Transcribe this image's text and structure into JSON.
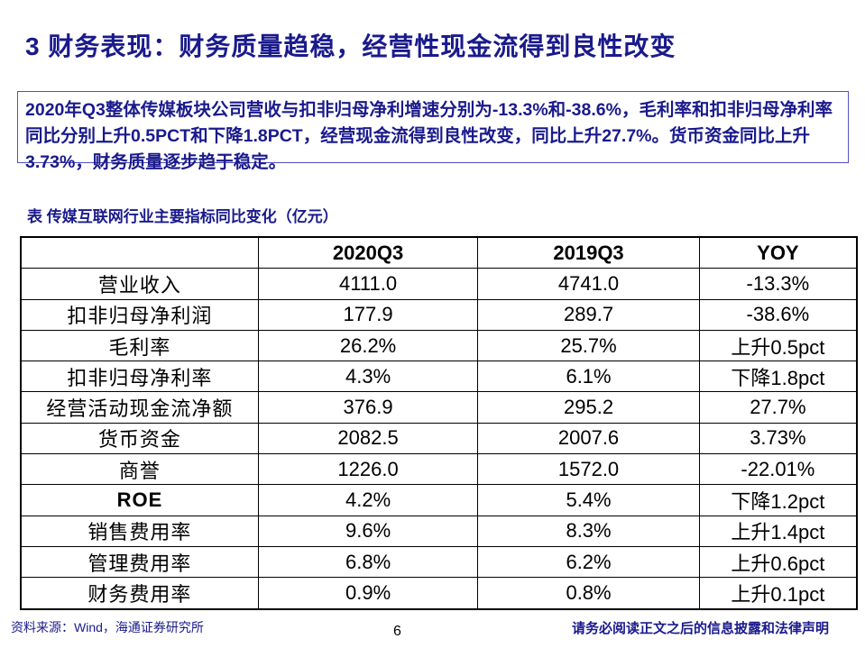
{
  "title": "3 财务表现：财务质量趋稳，经营性现金流得到良性改变",
  "summary": "2020年Q3整体传媒板块公司营收与扣非归母净利增速分别为-13.3%和-38.6%，毛利率和扣非归母净利率同比分别上升0.5PCT和下降1.8PCT，经营现金流得到良性改变，同比上升27.7%。货币资金同比上升3.73%，财务质量逐步趋于稳定。",
  "table_caption": "表 传媒互联网行业主要指标同比变化（亿元）",
  "table": {
    "headers": [
      "",
      "2020Q3",
      "2019Q3",
      "YOY"
    ],
    "rows": [
      [
        "营业收入",
        "4111.0",
        "4741.0",
        "-13.3%"
      ],
      [
        "扣非归母净利润",
        "177.9",
        "289.7",
        "-38.6%"
      ],
      [
        "毛利率",
        "26.2%",
        "25.7%",
        "上升0.5pct"
      ],
      [
        "扣非归母净利率",
        "4.3%",
        "6.1%",
        "下降1.8pct"
      ],
      [
        "经营活动现金流净额",
        "376.9",
        "295.2",
        "27.7%"
      ],
      [
        "货币资金",
        "2082.5",
        "2007.6",
        "3.73%"
      ],
      [
        "商誉",
        "1226.0",
        "1572.0",
        "-22.01%"
      ],
      [
        "ROE",
        "4.2%",
        "5.4%",
        "下降1.2pct"
      ],
      [
        "销售费用率",
        "9.6%",
        "8.3%",
        "上升1.4pct"
      ],
      [
        "管理费用率",
        "6.8%",
        "6.2%",
        "上升0.6pct"
      ],
      [
        "财务费用率",
        "0.9%",
        "0.8%",
        "上升0.1pct"
      ]
    ]
  },
  "footer": {
    "source": "资料来源：Wind，海通证券研究所",
    "page_number": "6",
    "disclaimer": "请务必阅读正文之后的信息披露和法律声明"
  }
}
